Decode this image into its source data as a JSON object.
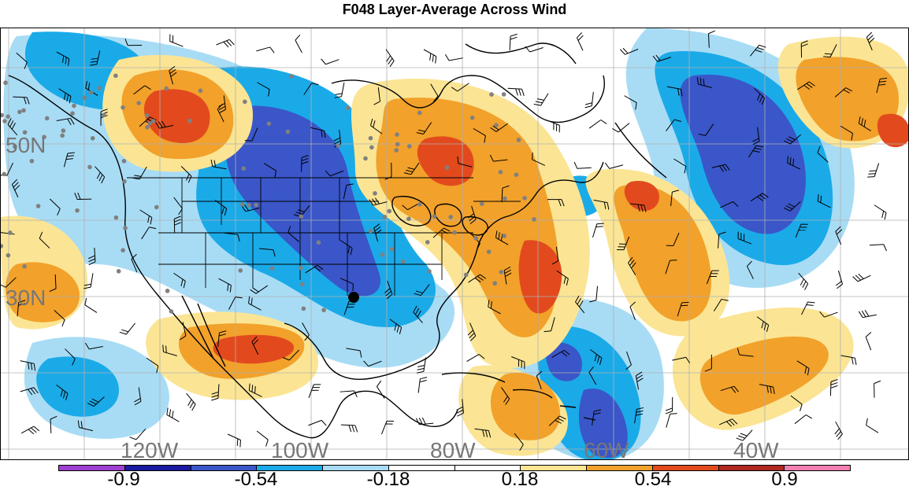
{
  "title": "F048 Layer-Average Across Wind",
  "map": {
    "lat_labels": [
      "50N",
      "30N"
    ],
    "lon_labels": [
      "120W",
      "100W",
      "80W",
      "60W",
      "40W"
    ],
    "highlight_marker": "black-dot-marker"
  },
  "colorbar": {
    "colors": [
      "#9f3fd1",
      "#1a1aa0",
      "#3a56c8",
      "#1aaae8",
      "#a8dcf5",
      "#ffffff",
      "#ffffff",
      "#fbe594",
      "#f2a12a",
      "#e24a1e",
      "#b02820",
      "#f37fb0"
    ],
    "labels": [
      "-0.9",
      "-0.54",
      "-0.18",
      "0.18",
      "0.54",
      "0.9"
    ]
  },
  "field_colors": {
    "strong_negative": "#3a56c8",
    "negative": "#1aaae8",
    "weak_negative": "#a8dcf5",
    "weak_positive": "#fbe594",
    "positive": "#f2a12a",
    "strong_positive": "#e24a1e"
  }
}
